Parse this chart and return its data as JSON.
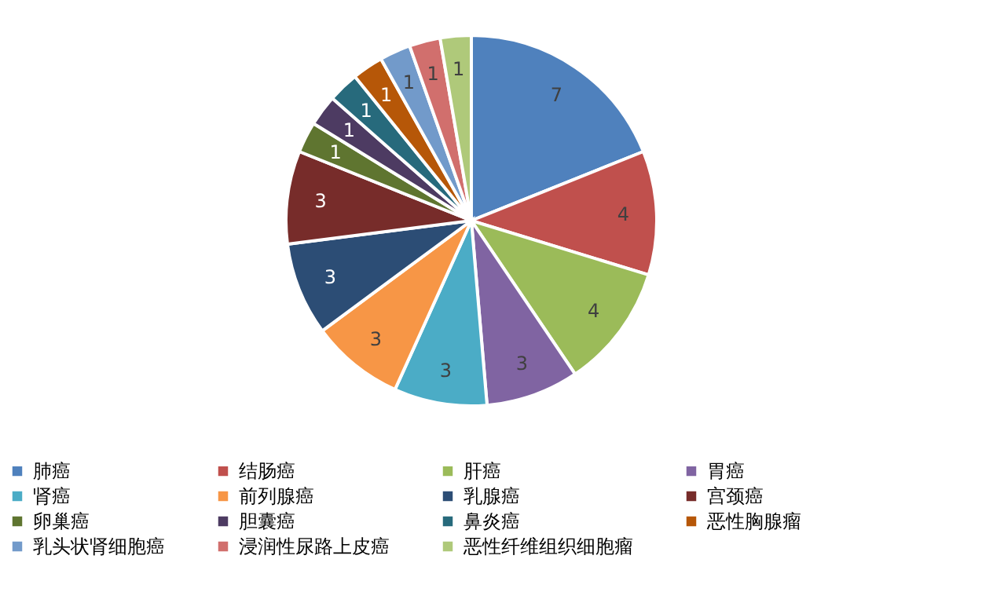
{
  "chart_data": {
    "type": "pie",
    "categories": [
      "肺癌",
      "结肠癌",
      "肝癌",
      "胃癌",
      "肾癌",
      "前列腺癌",
      "乳腺癌",
      "宫颈癌",
      "卵巢癌",
      "胆囊癌",
      "鼻炎癌",
      "恶性胸腺瘤",
      "乳头状肾细胞癌",
      "浸润性尿路上皮癌",
      "恶性纤维组织细胞瘤"
    ],
    "values": [
      7,
      4,
      4,
      3,
      3,
      3,
      3,
      3,
      1,
      1,
      1,
      1,
      1,
      1,
      1
    ],
    "colors": [
      "#4f81bd",
      "#c0504d",
      "#9bbb59",
      "#8064a2",
      "#4bacc6",
      "#f79646",
      "#2c4d75",
      "#772c2a",
      "#5f7530",
      "#4d3b62",
      "#276a7c",
      "#b65708",
      "#729aca",
      "#d16f6d",
      "#afc97a"
    ],
    "data_labels": true,
    "legend": "bottom"
  }
}
